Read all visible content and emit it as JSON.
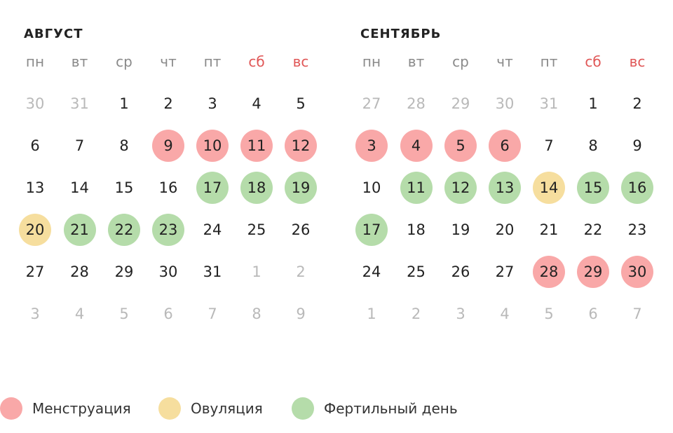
{
  "weekdays": [
    {
      "label": "пн",
      "weekend": false
    },
    {
      "label": "вт",
      "weekend": false
    },
    {
      "label": "ср",
      "weekend": false
    },
    {
      "label": "чт",
      "weekend": false
    },
    {
      "label": "пт",
      "weekend": false
    },
    {
      "label": "сб",
      "weekend": true
    },
    {
      "label": "вс",
      "weekend": true
    }
  ],
  "months": [
    {
      "title": "АВГУСТ",
      "weeks": [
        [
          {
            "d": "30",
            "o": true
          },
          {
            "d": "31",
            "o": true
          },
          {
            "d": "1"
          },
          {
            "d": "2"
          },
          {
            "d": "3"
          },
          {
            "d": "4"
          },
          {
            "d": "5"
          }
        ],
        [
          {
            "d": "6"
          },
          {
            "d": "7"
          },
          {
            "d": "8"
          },
          {
            "d": "9",
            "s": "mens"
          },
          {
            "d": "10",
            "s": "mens"
          },
          {
            "d": "11",
            "s": "mens"
          },
          {
            "d": "12",
            "s": "mens"
          }
        ],
        [
          {
            "d": "13"
          },
          {
            "d": "14"
          },
          {
            "d": "15"
          },
          {
            "d": "16"
          },
          {
            "d": "17",
            "s": "fert"
          },
          {
            "d": "18",
            "s": "fert"
          },
          {
            "d": "19",
            "s": "fert"
          }
        ],
        [
          {
            "d": "20",
            "s": "ovul"
          },
          {
            "d": "21",
            "s": "fert"
          },
          {
            "d": "22",
            "s": "fert"
          },
          {
            "d": "23",
            "s": "fert"
          },
          {
            "d": "24"
          },
          {
            "d": "25"
          },
          {
            "d": "26"
          }
        ],
        [
          {
            "d": "27"
          },
          {
            "d": "28"
          },
          {
            "d": "29"
          },
          {
            "d": "30"
          },
          {
            "d": "31"
          },
          {
            "d": "1",
            "o": true
          },
          {
            "d": "2",
            "o": true
          }
        ],
        [
          {
            "d": "3",
            "o": true
          },
          {
            "d": "4",
            "o": true
          },
          {
            "d": "5",
            "o": true
          },
          {
            "d": "6",
            "o": true
          },
          {
            "d": "7",
            "o": true
          },
          {
            "d": "8",
            "o": true
          },
          {
            "d": "9",
            "o": true
          }
        ]
      ]
    },
    {
      "title": "СЕНТЯБРЬ",
      "weeks": [
        [
          {
            "d": "27",
            "o": true
          },
          {
            "d": "28",
            "o": true
          },
          {
            "d": "29",
            "o": true
          },
          {
            "d": "30",
            "o": true
          },
          {
            "d": "31",
            "o": true
          },
          {
            "d": "1"
          },
          {
            "d": "2"
          }
        ],
        [
          {
            "d": "3",
            "s": "mens"
          },
          {
            "d": "4",
            "s": "mens"
          },
          {
            "d": "5",
            "s": "mens"
          },
          {
            "d": "6",
            "s": "mens"
          },
          {
            "d": "7"
          },
          {
            "d": "8"
          },
          {
            "d": "9"
          }
        ],
        [
          {
            "d": "10"
          },
          {
            "d": "11",
            "s": "fert"
          },
          {
            "d": "12",
            "s": "fert"
          },
          {
            "d": "13",
            "s": "fert"
          },
          {
            "d": "14",
            "s": "ovul"
          },
          {
            "d": "15",
            "s": "fert"
          },
          {
            "d": "16",
            "s": "fert"
          }
        ],
        [
          {
            "d": "17",
            "s": "fert"
          },
          {
            "d": "18"
          },
          {
            "d": "19"
          },
          {
            "d": "20"
          },
          {
            "d": "21"
          },
          {
            "d": "22"
          },
          {
            "d": "23"
          }
        ],
        [
          {
            "d": "24"
          },
          {
            "d": "25"
          },
          {
            "d": "26"
          },
          {
            "d": "27"
          },
          {
            "d": "28",
            "s": "mens"
          },
          {
            "d": "29",
            "s": "mens"
          },
          {
            "d": "30",
            "s": "mens"
          }
        ],
        [
          {
            "d": "1",
            "o": true
          },
          {
            "d": "2",
            "o": true
          },
          {
            "d": "3",
            "o": true
          },
          {
            "d": "4",
            "o": true
          },
          {
            "d": "5",
            "o": true
          },
          {
            "d": "6",
            "o": true
          },
          {
            "d": "7",
            "o": true
          }
        ]
      ]
    }
  ],
  "legend": [
    {
      "key": "mens",
      "label": "Менструация",
      "color": "#f9a8a8"
    },
    {
      "key": "ovul",
      "label": "Овуляция",
      "color": "#f6de9e"
    },
    {
      "key": "fert",
      "label": "Фертильный день",
      "color": "#b5dcaa"
    }
  ],
  "colors": {
    "menstruation": "#f9a8a8",
    "ovulation": "#f6de9e",
    "fertile": "#b5dcaa",
    "weekend_label": "#e05757",
    "other_month_day": "#b9b9b9"
  }
}
